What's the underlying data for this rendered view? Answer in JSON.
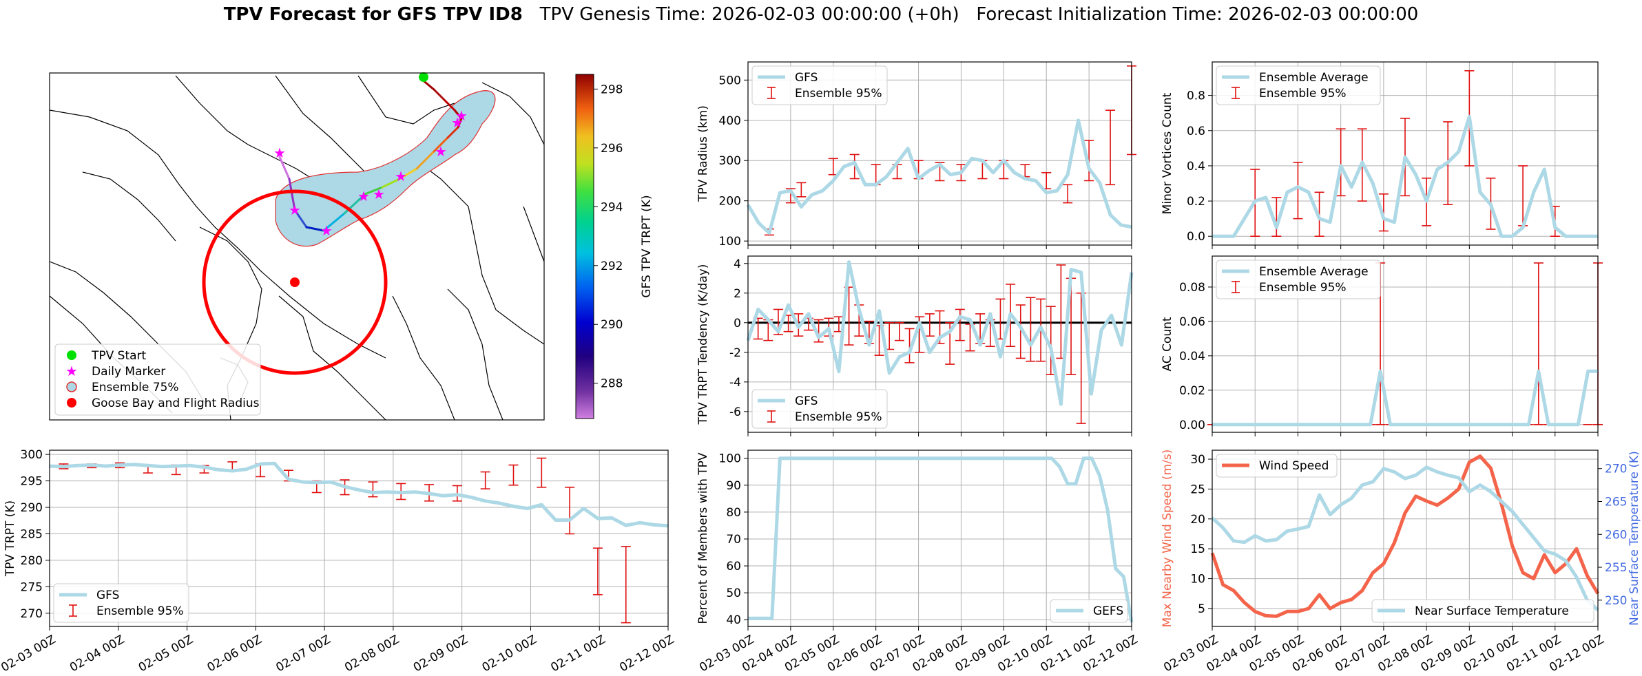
{
  "figure": {
    "title_bold": "TPV Forecast for GFS TPV ID8",
    "title_genesis": "TPV Genesis Time: 2026-02-03 00:00:00 (+0h)",
    "title_init": "Forecast Initialization Time: 2026-02-03 00:00:00"
  },
  "time_ticks": [
    "02-03 00Z",
    "02-04 00Z",
    "02-05 00Z",
    "02-06 00Z",
    "02-07 00Z",
    "02-08 00Z",
    "02-09 00Z",
    "02-10 00Z",
    "02-11 00Z",
    "02-12 00Z"
  ],
  "map": {
    "colorbar": {
      "label": "GFS TPV TRPT (K)",
      "ticks": [
        288,
        290,
        292,
        294,
        296,
        298
      ],
      "range": [
        286.8,
        298.5
      ]
    },
    "legend": [
      "TPV Start",
      "Daily Marker",
      "Ensemble 75%",
      "Goose Bay and Flight Radius"
    ],
    "colors": {
      "start": "#00e000",
      "marker": "#ff00ff",
      "ensemble_fill": "#add8e6",
      "ensemble_edge": "#e03030",
      "goose_bay": "#ff0000",
      "radius_circle": "#ff0000"
    }
  },
  "chart_data": [
    {
      "id": "radius",
      "type": "line",
      "ylabel": "TPV Radius (km)",
      "ylim": [
        90,
        545
      ],
      "yticks": [
        100,
        200,
        300,
        400,
        500
      ],
      "legend": [
        "GFS",
        "Ensemble 95%"
      ],
      "legend_position": "top-left",
      "series": [
        {
          "name": "GFS",
          "values": [
            190,
            145,
            120,
            220,
            225,
            185,
            215,
            225,
            250,
            285,
            295,
            240,
            240,
            260,
            295,
            330,
            255,
            275,
            290,
            265,
            270,
            305,
            300,
            270,
            300,
            270,
            255,
            250,
            220,
            225,
            265,
            400,
            280,
            245,
            165,
            140,
            135
          ]
        }
      ],
      "errorbars": [
        [
          2,
          115,
          130
        ],
        [
          4,
          195,
          230
        ],
        [
          5,
          210,
          245
        ],
        [
          8,
          265,
          305
        ],
        [
          10,
          255,
          315
        ],
        [
          12,
          240,
          290
        ],
        [
          14,
          255,
          290
        ],
        [
          16,
          255,
          300
        ],
        [
          18,
          250,
          295
        ],
        [
          20,
          250,
          290
        ],
        [
          22,
          255,
          300
        ],
        [
          24,
          255,
          300
        ],
        [
          26,
          260,
          290
        ],
        [
          28,
          230,
          270
        ],
        [
          30,
          195,
          240
        ],
        [
          32,
          250,
          350
        ],
        [
          34,
          240,
          425
        ],
        [
          36,
          315,
          535
        ]
      ]
    },
    {
      "id": "minor_vortices",
      "type": "line",
      "ylabel": "Minor Vortices Count",
      "ylim": [
        -0.05,
        0.99
      ],
      "yticks": [
        0.0,
        0.2,
        0.4,
        0.6,
        0.8
      ],
      "legend": [
        "Ensemble Average",
        "Ensemble 95%"
      ],
      "legend_position": "top-left",
      "series": [
        {
          "name": "Ensemble Average",
          "values": [
            0,
            0,
            0,
            0.1,
            0.2,
            0.22,
            0.05,
            0.25,
            0.28,
            0.25,
            0.1,
            0.08,
            0.4,
            0.28,
            0.42,
            0.3,
            0.1,
            0.08,
            0.45,
            0.35,
            0.2,
            0.38,
            0.42,
            0.48,
            0.68,
            0.25,
            0.18,
            0,
            0,
            0.05,
            0.25,
            0.38,
            0.05,
            0,
            0,
            0,
            0
          ]
        }
      ],
      "errorbars": [
        [
          4,
          0,
          0.38
        ],
        [
          6,
          0,
          0.22
        ],
        [
          8,
          0.1,
          0.42
        ],
        [
          10,
          0,
          0.25
        ],
        [
          12,
          0.23,
          0.61
        ],
        [
          14,
          0.2,
          0.61
        ],
        [
          16,
          0.03,
          0.24
        ],
        [
          18,
          0.23,
          0.67
        ],
        [
          20,
          0.06,
          0.33
        ],
        [
          22,
          0.18,
          0.65
        ],
        [
          24,
          0.4,
          0.94
        ],
        [
          26,
          0.04,
          0.33
        ],
        [
          29,
          0.06,
          0.4
        ],
        [
          32,
          0,
          0.17
        ]
      ]
    },
    {
      "id": "tendency",
      "type": "line",
      "ylabel": "TPV TRPT Tendency (K/day)",
      "ylim": [
        -7.4,
        4.5
      ],
      "yticks": [
        -6,
        -4,
        -2,
        0,
        2,
        4
      ],
      "legend": [
        "GFS",
        "Ensemble 95%"
      ],
      "legend_position": "bottom-left",
      "series": [
        {
          "name": "GFS",
          "values": [
            -1.2,
            0.9,
            0.2,
            -0.6,
            1.2,
            -0.3,
            0.6,
            -1.0,
            -0.4,
            -3.3,
            4.1,
            0.9,
            -1.5,
            0.8,
            -3.4,
            -2.3,
            -2.0,
            0.0,
            -2.0,
            -1.0,
            -0.6,
            0.4,
            0.2,
            -1.5,
            0.6,
            -2.3,
            0.6,
            -0.3,
            -1.5,
            -0.3,
            -1.7,
            -5.5,
            3.6,
            3.4,
            -4.8,
            -0.5,
            0.5,
            -1.5,
            3.4
          ]
        }
      ],
      "errorbars": [
        [
          1,
          -1.1,
          0.3
        ],
        [
          2,
          -1.2,
          0.2
        ],
        [
          3,
          -0.8,
          0.9
        ],
        [
          4,
          -0.6,
          0.5
        ],
        [
          5,
          -0.9,
          0.6
        ],
        [
          6,
          -0.5,
          0.3
        ],
        [
          7,
          -1.3,
          0.2
        ],
        [
          8,
          -0.9,
          0.3
        ],
        [
          9,
          -0.6,
          0.4
        ],
        [
          10,
          -1.5,
          2.4
        ],
        [
          11,
          -0.9,
          1.2
        ],
        [
          12,
          -1.4,
          0.1
        ],
        [
          13,
          -2.2,
          -0.2
        ],
        [
          14,
          -1.8,
          0.0
        ],
        [
          15,
          -1.2,
          0.0
        ],
        [
          16,
          -2.7,
          -0.4
        ],
        [
          17,
          -2.0,
          0.4
        ],
        [
          18,
          -0.9,
          0.6
        ],
        [
          19,
          -1.4,
          0.8
        ],
        [
          20,
          -2.8,
          0.0
        ],
        [
          21,
          -1.2,
          0.9
        ],
        [
          22,
          -1.9,
          -0.1
        ],
        [
          23,
          -1.4,
          0.6
        ],
        [
          24,
          -1.6,
          0.2
        ],
        [
          25,
          -1.1,
          1.6
        ],
        [
          26,
          -1.6,
          2.6
        ],
        [
          27,
          -2.4,
          1.2
        ],
        [
          28,
          -2.6,
          1.7
        ],
        [
          29,
          -2.6,
          1.6
        ],
        [
          30,
          -3.5,
          1.1
        ],
        [
          31,
          -2.4,
          3.9
        ],
        [
          32,
          -3.5,
          3.0
        ],
        [
          33,
          -6.8,
          2.0
        ]
      ]
    },
    {
      "id": "ac_count",
      "type": "line",
      "ylabel": "AC Count",
      "ylim": [
        -0.0045,
        0.098
      ],
      "yticks": [
        0.0,
        0.02,
        0.04,
        0.06,
        0.08
      ],
      "legend": [
        "Ensemble Average",
        "Ensemble 95%"
      ],
      "legend_position": "top-left",
      "series": [
        {
          "name": "Ensemble Average",
          "values": [
            0,
            0,
            0,
            0,
            0,
            0,
            0,
            0,
            0,
            0,
            0,
            0,
            0,
            0,
            0,
            0,
            0,
            0.031,
            0,
            0,
            0,
            0,
            0,
            0,
            0,
            0,
            0,
            0,
            0,
            0,
            0,
            0,
            0,
            0.031,
            0,
            0,
            0,
            0,
            0.031,
            0.031
          ]
        }
      ],
      "errorbars_all_zero": true,
      "errorbars": [
        [
          17,
          0,
          0.094
        ],
        [
          33,
          0,
          0.094
        ],
        [
          39,
          0,
          0.094
        ]
      ]
    },
    {
      "id": "trpt",
      "type": "line",
      "ylabel": "TPV TRPT (K)",
      "ylim": [
        267.5,
        300.8
      ],
      "yticks": [
        270,
        275,
        280,
        285,
        290,
        295,
        300
      ],
      "legend": [
        "GFS",
        "Ensemble 95%"
      ],
      "legend_position": "bottom-left",
      "series": [
        {
          "name": "GFS",
          "values": [
            297.8,
            297.7,
            297.9,
            298.0,
            297.8,
            298.0,
            298.1,
            297.9,
            297.7,
            297.8,
            297.9,
            297.6,
            297.1,
            296.9,
            297.2,
            298.2,
            298.3,
            295.3,
            294.8,
            294.7,
            294.8,
            293.9,
            293.3,
            292.8,
            292.9,
            292.8,
            292.9,
            292.6,
            292.2,
            292.4,
            291.9,
            291.2,
            290.8,
            290.2,
            289.8,
            290.5,
            287.6,
            287.6,
            289.8,
            287.9,
            288.0,
            286.6,
            287.1,
            286.7,
            286.5
          ]
        }
      ],
      "errorbars": [
        [
          1,
          297.3,
          298.2
        ],
        [
          3,
          297.5,
          298.2
        ],
        [
          5,
          297.5,
          298.4
        ],
        [
          7,
          296.5,
          297.9
        ],
        [
          9,
          296.2,
          298.0
        ],
        [
          11,
          296.5,
          297.9
        ],
        [
          13,
          297.0,
          298.6
        ],
        [
          15,
          295.8,
          298.2
        ],
        [
          17,
          295.0,
          297.0
        ],
        [
          19,
          292.8,
          295.0
        ],
        [
          21,
          292.4,
          295.2
        ],
        [
          23,
          292.0,
          294.8
        ],
        [
          25,
          291.5,
          294.5
        ],
        [
          27,
          291.2,
          294.3
        ],
        [
          29,
          291.2,
          294.1
        ],
        [
          31,
          293.5,
          296.7
        ],
        [
          33,
          294.2,
          298.0
        ],
        [
          35,
          293.8,
          299.3
        ],
        [
          37,
          285.0,
          293.8
        ],
        [
          39,
          273.5,
          282.3
        ],
        [
          41,
          268.2,
          282.6
        ]
      ]
    },
    {
      "id": "percent",
      "type": "line",
      "ylabel": "Percent of Members with TPV",
      "ylim": [
        37.5,
        103
      ],
      "yticks": [
        40,
        50,
        60,
        70,
        80,
        90,
        100
      ],
      "legend": [
        "GEFS"
      ],
      "legend_position": "bottom-right",
      "series": [
        {
          "name": "GEFS",
          "values": [
            40.5,
            40.5,
            40.5,
            40.5,
            100,
            100,
            100,
            100,
            100,
            100,
            100,
            100,
            100,
            100,
            100,
            100,
            100,
            100,
            100,
            100,
            100,
            100,
            100,
            100,
            100,
            100,
            100,
            100,
            100,
            100,
            100,
            100,
            100,
            100,
            100,
            100,
            100,
            100,
            100,
            96.8,
            90.5,
            90.5,
            100,
            100,
            93.5,
            80.6,
            59,
            56,
            39
          ]
        }
      ]
    },
    {
      "id": "wind_temp",
      "type": "line",
      "ylabel": "Max Nearby Wind Speed (m/s)",
      "ylabel_right": "Near Surface Temperature (K)",
      "ylim": [
        2,
        31.5
      ],
      "yticks": [
        5,
        10,
        15,
        20,
        25,
        30
      ],
      "ylim_right": [
        246,
        272.8
      ],
      "yticks_right": [
        250,
        255,
        260,
        265,
        270
      ],
      "legend": [
        "Wind Speed"
      ],
      "legend_right": [
        "Near Surface Temperature"
      ],
      "colors": {
        "wind": "#f4644a",
        "temperature": "#add8e6",
        "left_axis_label": "#f4644a",
        "right_axis_label": "#4169e1"
      },
      "series": [
        {
          "name": "Wind Speed",
          "axis": "left",
          "values": [
            14.3,
            9.0,
            8.0,
            6.0,
            4.5,
            3.8,
            3.7,
            4.5,
            4.5,
            5.0,
            7.3,
            5.0,
            6.0,
            6.5,
            8.0,
            11.0,
            12.5,
            16.0,
            21.0,
            23.8,
            23.0,
            22.3,
            23.5,
            25.0,
            29.5,
            30.5,
            28.5,
            22.5,
            15.5,
            11.0,
            10.0,
            14.0,
            11.0,
            12.5,
            15.0,
            10.5,
            7.5
          ]
        },
        {
          "name": "Near Surface Temperature",
          "axis": "right",
          "values": [
            262.5,
            261.0,
            259.0,
            258.8,
            259.8,
            259.0,
            259.2,
            260.5,
            260.8,
            261.2,
            266.0,
            263.0,
            264.5,
            265.5,
            267.5,
            268.0,
            270.0,
            269.5,
            268.5,
            269.0,
            270.2,
            269.5,
            269.0,
            268.6,
            266.5,
            267.5,
            266.5,
            265.0,
            263.5,
            261.5,
            259.5,
            257.5,
            257.0,
            256.0,
            253.5,
            250.0,
            248.5
          ]
        }
      ]
    }
  ]
}
